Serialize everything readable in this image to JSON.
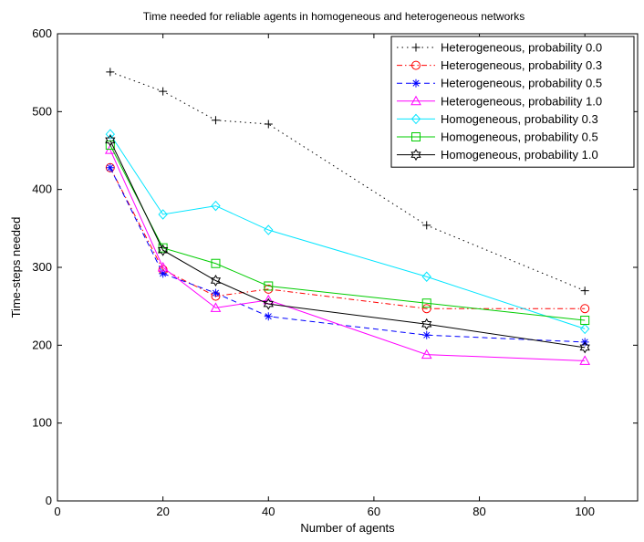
{
  "chart_data": {
    "type": "line",
    "title": "Time needed for reliable agents in homogeneous and heterogeneous networks",
    "xlabel": "Number of agents",
    "ylabel": "Time-steps needed",
    "xlim": [
      0,
      110
    ],
    "ylim": [
      0,
      600
    ],
    "xticks": [
      0,
      20,
      40,
      60,
      80,
      100
    ],
    "yticks": [
      0,
      100,
      200,
      300,
      400,
      500,
      600
    ],
    "grid": false,
    "legend_position": "top-right",
    "x": [
      10,
      20,
      30,
      40,
      70,
      100
    ],
    "series": [
      {
        "name": "Heterogeneous, probability 0.0",
        "values": [
          551,
          526,
          489,
          484,
          354,
          270
        ],
        "color": "#000000",
        "dash": "1.5,4",
        "marker": "plus"
      },
      {
        "name": "Heterogeneous, probability 0.3",
        "values": [
          428,
          297,
          263,
          272,
          247,
          247
        ],
        "color": "#ff0000",
        "dash": "6,3,1.5,3",
        "marker": "circle"
      },
      {
        "name": "Heterogeneous, probability 0.5",
        "values": [
          428,
          292,
          267,
          237,
          213,
          204
        ],
        "color": "#0000ff",
        "dash": "6,4",
        "marker": "asterisk"
      },
      {
        "name": "Heterogeneous, probability 1.0",
        "values": [
          451,
          300,
          248,
          258,
          188,
          180
        ],
        "color": "#ff00ff",
        "dash": "",
        "marker": "triangle"
      },
      {
        "name": "Homogeneous, probability 0.3",
        "values": [
          471,
          368,
          379,
          348,
          288,
          221
        ],
        "color": "#00e5ff",
        "dash": "",
        "marker": "diamond"
      },
      {
        "name": "Homogeneous, probability 0.5",
        "values": [
          457,
          325,
          305,
          276,
          254,
          232
        ],
        "color": "#00cc00",
        "dash": "",
        "marker": "square"
      },
      {
        "name": "Homogeneous, probability 1.0",
        "values": [
          463,
          322,
          283,
          253,
          227,
          197
        ],
        "color": "#000000",
        "dash": "",
        "marker": "hexagram"
      }
    ]
  }
}
